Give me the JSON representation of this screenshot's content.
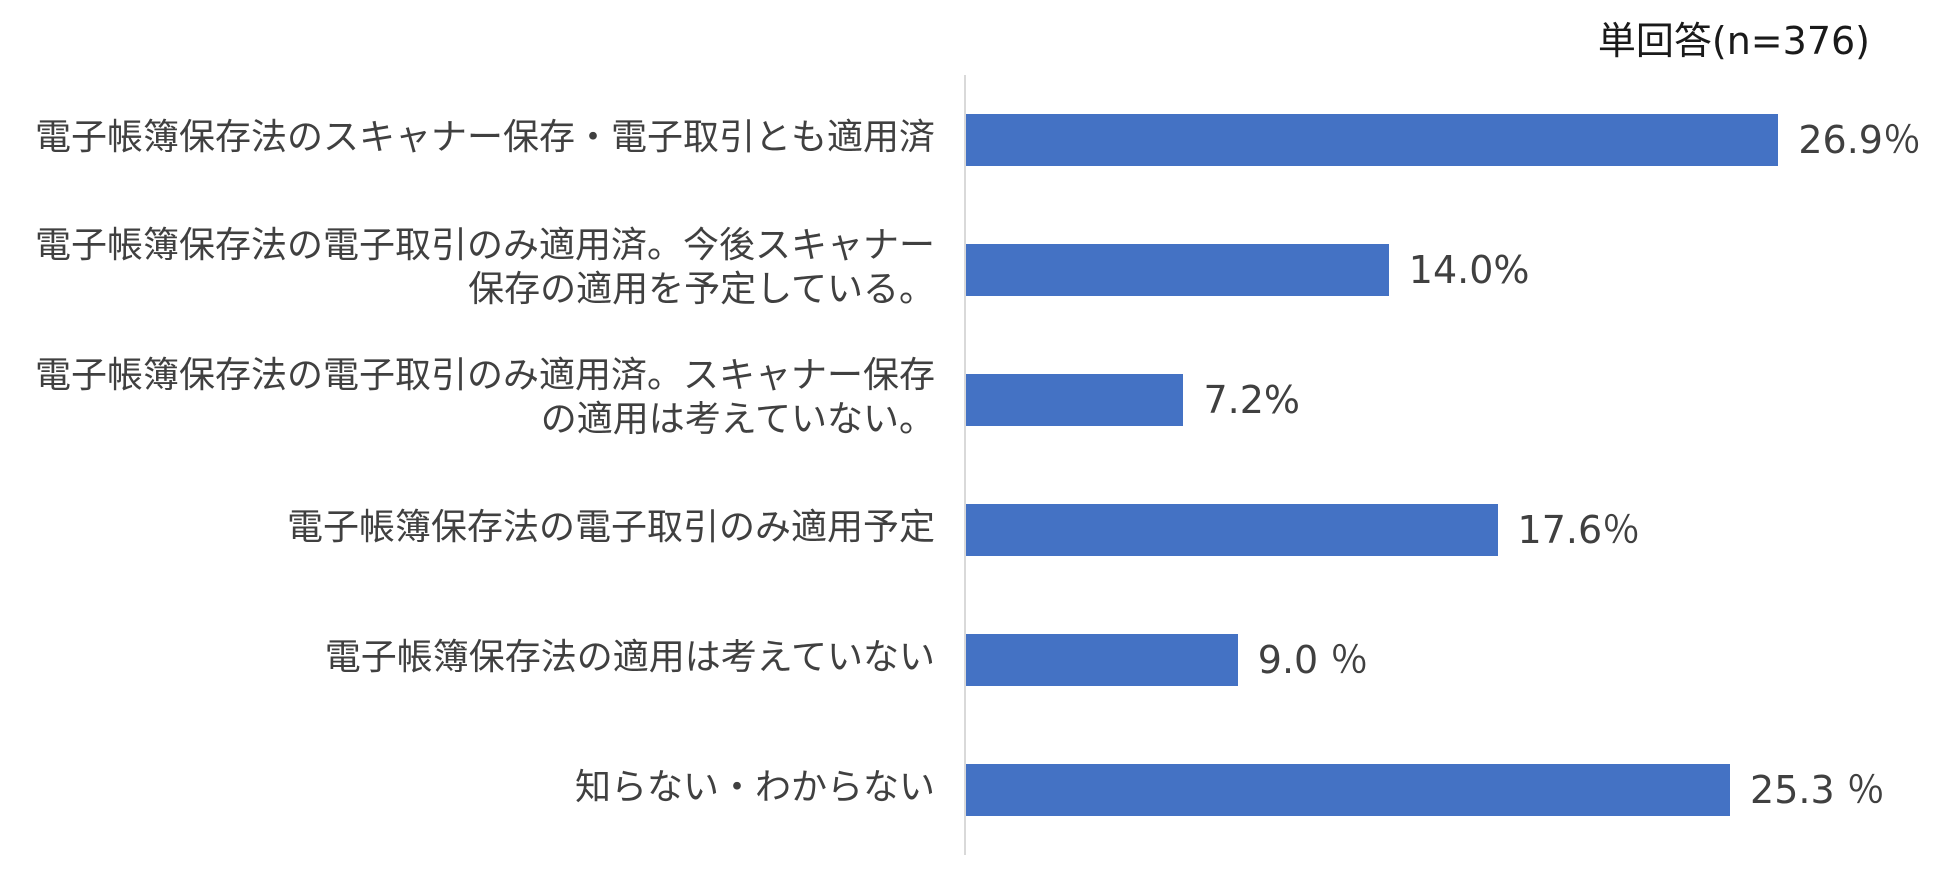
{
  "chart_data": {
    "type": "bar",
    "orientation": "horizontal",
    "note": "単回答(n=376)",
    "categories": [
      "電子帳簿保存法のスキャナー保存・電子取引とも適用済",
      "電子帳簿保存法の電子取引のみ適用済。今後スキャナー\n保存の適用を予定している。",
      "電子帳簿保存法の電子取引のみ適用済。スキャナー保存\nの適用は考えていない。",
      "電子帳簿保存法の電子取引のみ適用予定",
      "電子帳簿保存法の適用は考えていない",
      "知らない・わからない"
    ],
    "values": [
      26.9,
      14.0,
      7.2,
      17.6,
      9.0,
      25.3
    ],
    "value_labels": [
      "26.9％",
      "14.0%",
      "7.2%",
      "17.6％",
      "9.0 ％",
      "25.3 ％"
    ],
    "bar_color": "#4472c4",
    "axis_line_color": "#d9d9d9",
    "legend": false,
    "grid": false
  }
}
